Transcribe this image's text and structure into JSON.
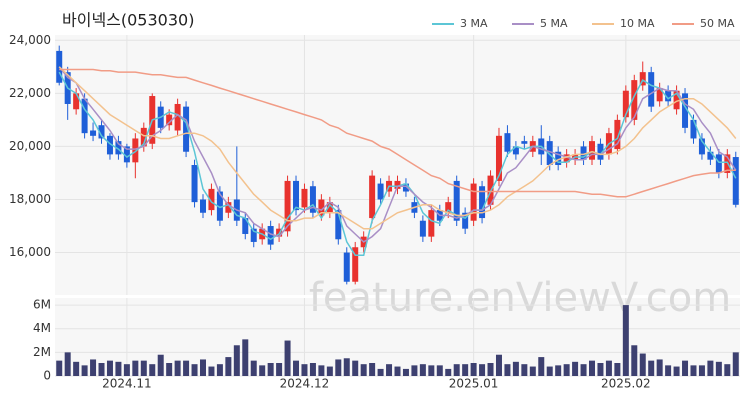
{
  "chart_data": {
    "type": "candlestick",
    "title": "바이넥스(053030)",
    "watermark": "feature.enViewV.com",
    "categories": [
      null,
      null,
      null,
      null,
      null,
      null,
      null,
      null,
      "2024.11",
      null,
      null,
      null,
      null,
      null,
      null,
      null,
      null,
      null,
      null,
      null,
      null,
      null,
      null,
      null,
      null,
      null,
      null,
      null,
      null,
      "2024.12",
      null,
      null,
      null,
      null,
      null,
      null,
      null,
      null,
      null,
      null,
      null,
      null,
      null,
      null,
      null,
      null,
      null,
      null,
      null,
      "2025.01",
      null,
      null,
      null,
      null,
      null,
      null,
      null,
      null,
      null,
      null,
      null,
      null,
      null,
      null,
      null,
      null,
      null,
      "2025.02",
      null,
      null,
      null,
      null,
      null,
      null,
      null,
      null,
      null,
      null,
      null,
      null,
      null
    ],
    "open": [
      23600,
      22800,
      21400,
      21800,
      20600,
      20800,
      20400,
      20200,
      20000,
      19400,
      20000,
      20100,
      21500,
      20800,
      20600,
      21500,
      19300,
      18000,
      17600,
      18300,
      17500,
      18000,
      17300,
      16900,
      16500,
      17000,
      16600,
      16800,
      18700,
      17700,
      18500,
      17400,
      17500,
      17600,
      16000,
      14900,
      16200,
      17300,
      18600,
      18300,
      18400,
      18600,
      17900,
      17200,
      16600,
      17600,
      17500,
      18700,
      17500,
      17200,
      18500,
      17800,
      18700,
      20500,
      20000,
      20200,
      19800,
      20300,
      20200,
      19800,
      19400,
      19500,
      20000,
      19500,
      20100,
      19700,
      19900,
      21100,
      21000,
      22300,
      22800,
      21700,
      22100,
      21400,
      22000,
      21000,
      20300,
      19800,
      19700,
      19000,
      19600
    ],
    "high": [
      23800,
      23000,
      22200,
      22000,
      20900,
      21000,
      20500,
      20400,
      20100,
      20500,
      20900,
      22000,
      21700,
      21400,
      21800,
      21700,
      19500,
      18200,
      18600,
      18500,
      18100,
      20000,
      17500,
      17100,
      17100,
      17200,
      17100,
      18900,
      18900,
      18600,
      18700,
      18200,
      18100,
      17800,
      16200,
      16400,
      16800,
      19100,
      18800,
      18900,
      18900,
      18800,
      18100,
      17400,
      17800,
      17800,
      18100,
      18900,
      17700,
      18800,
      18700,
      19100,
      20700,
      20800,
      20200,
      20400,
      20400,
      20800,
      20400,
      20000,
      19900,
      19900,
      20200,
      20400,
      20300,
      20700,
      21200,
      22300,
      22700,
      23200,
      23000,
      22400,
      22300,
      22300,
      22200,
      21200,
      20500,
      20000,
      19900,
      19900,
      19800
    ],
    "low": [
      22300,
      21000,
      21200,
      20300,
      20200,
      20100,
      19500,
      19500,
      19200,
      18800,
      19800,
      19900,
      20500,
      20600,
      20400,
      19600,
      17700,
      17300,
      17400,
      17000,
      17300,
      17000,
      16500,
      16200,
      16300,
      16100,
      16400,
      16600,
      17400,
      17500,
      17300,
      17200,
      17300,
      16300,
      14800,
      14800,
      16000,
      17100,
      17800,
      18100,
      18200,
      18100,
      17300,
      16400,
      16400,
      17000,
      17300,
      17000,
      16700,
      17000,
      17100,
      17600,
      18500,
      19600,
      19500,
      19900,
      19600,
      19300,
      19100,
      19100,
      19200,
      19300,
      19300,
      19300,
      19300,
      19500,
      19700,
      20900,
      20800,
      22100,
      21300,
      21500,
      21500,
      21200,
      20500,
      20100,
      19500,
      19300,
      18800,
      18800,
      17700
    ],
    "close": [
      22400,
      21600,
      22000,
      20500,
      20400,
      20300,
      19700,
      19700,
      19400,
      20300,
      20700,
      21900,
      20700,
      21200,
      21600,
      19800,
      17900,
      17500,
      18400,
      17200,
      17900,
      17200,
      16700,
      16400,
      16900,
      16300,
      16900,
      18700,
      17600,
      18400,
      17500,
      18000,
      17900,
      16500,
      14900,
      16200,
      16600,
      18900,
      18000,
      18700,
      18700,
      18300,
      17500,
      16600,
      17600,
      17200,
      17900,
      17200,
      16900,
      18600,
      17300,
      18900,
      20400,
      19800,
      19700,
      20100,
      20200,
      19700,
      19300,
      19300,
      19700,
      19700,
      19500,
      20200,
      19500,
      20500,
      21000,
      22100,
      22500,
      22800,
      21500,
      22200,
      21700,
      22100,
      20700,
      20300,
      19700,
      19500,
      19000,
      19700,
      17800
    ],
    "up_color": "#e8322e",
    "down_color": "#1f5fd8",
    "ylim": [
      14400,
      24200
    ],
    "yticks": [
      {
        "value": 16000,
        "label": "16,000"
      },
      {
        "value": 18000,
        "label": "18,000"
      },
      {
        "value": 20000,
        "label": "20,000"
      },
      {
        "value": 22000,
        "label": "22,000"
      },
      {
        "value": 24000,
        "label": "24,000"
      }
    ],
    "grid": true,
    "legend": "top-right",
    "series": [
      {
        "name": "3 MA",
        "color": "#5cc6d6",
        "values": [
          22800,
          22200,
          22000,
          21400,
          21000,
          20400,
          20100,
          19900,
          19600,
          19800,
          20100,
          21000,
          21100,
          21300,
          21200,
          20900,
          19800,
          18400,
          17900,
          17700,
          17800,
          17400,
          17300,
          16800,
          16700,
          16500,
          16700,
          17300,
          17700,
          17600,
          17800,
          17300,
          17800,
          17500,
          16400,
          15900,
          15900,
          17200,
          17800,
          18500,
          18500,
          18600,
          18200,
          17500,
          17200,
          17100,
          17600,
          17400,
          17300,
          17600,
          17600,
          18300,
          18900,
          19700,
          20000,
          19900,
          20000,
          20000,
          19700,
          19400,
          19400,
          19600,
          19600,
          19800,
          19700,
          20100,
          20300,
          21200,
          21900,
          22500,
          22300,
          22200,
          21800,
          22000,
          21500,
          21000,
          20200,
          19800,
          19400,
          19400,
          18800
        ]
      },
      {
        "name": "5 MA",
        "color": "#a98fc6",
        "values": [
          23000,
          22600,
          22400,
          21800,
          21400,
          21000,
          20600,
          20100,
          19900,
          19900,
          20000,
          20400,
          20600,
          20900,
          21200,
          21000,
          20200,
          19600,
          19000,
          18200,
          17800,
          17600,
          17500,
          17100,
          16900,
          16700,
          16600,
          17000,
          17300,
          17600,
          17700,
          17600,
          17900,
          17700,
          17000,
          16700,
          16400,
          16600,
          16900,
          17700,
          18500,
          18500,
          18200,
          17900,
          17700,
          17400,
          17400,
          17300,
          17400,
          17600,
          17600,
          17800,
          18400,
          19000,
          19200,
          19600,
          20000,
          19900,
          19800,
          19700,
          19600,
          19500,
          19500,
          19700,
          19700,
          19900,
          20100,
          20700,
          21100,
          21800,
          22000,
          22200,
          22100,
          22100,
          21600,
          21400,
          20900,
          20500,
          19800,
          19600,
          19100
        ]
      },
      {
        "name": "10 MA",
        "color": "#f3c28e",
        "values": [
          23000,
          22700,
          22400,
          22100,
          21800,
          21500,
          21200,
          21000,
          20800,
          20600,
          20400,
          20400,
          20300,
          20300,
          20400,
          20500,
          20500,
          20400,
          20200,
          19900,
          19400,
          19000,
          18600,
          18200,
          17900,
          17600,
          17400,
          17200,
          17200,
          17300,
          17300,
          17500,
          17500,
          17500,
          17300,
          17100,
          16900,
          16900,
          17100,
          17300,
          17500,
          17600,
          17700,
          17800,
          17800,
          17600,
          17500,
          17400,
          17400,
          17500,
          17500,
          17600,
          17800,
          18100,
          18300,
          18500,
          18700,
          19000,
          19300,
          19500,
          19600,
          19700,
          19700,
          19800,
          19700,
          19700,
          19800,
          20000,
          20300,
          20700,
          21000,
          21300,
          21500,
          21700,
          21800,
          21800,
          21600,
          21300,
          21000,
          20700,
          20300
        ]
      },
      {
        "name": "50 MA",
        "color": "#f19c86",
        "values": [
          22900,
          22900,
          22900,
          22900,
          22900,
          22850,
          22850,
          22800,
          22800,
          22800,
          22750,
          22700,
          22700,
          22650,
          22600,
          22600,
          22500,
          22400,
          22300,
          22200,
          22100,
          22000,
          21900,
          21800,
          21700,
          21600,
          21500,
          21400,
          21300,
          21200,
          21100,
          21000,
          20800,
          20700,
          20500,
          20400,
          20300,
          20200,
          20000,
          19900,
          19700,
          19500,
          19300,
          19100,
          18900,
          18800,
          18600,
          18500,
          18400,
          18300,
          18300,
          18300,
          18300,
          18300,
          18300,
          18300,
          18300,
          18300,
          18300,
          18300,
          18300,
          18300,
          18250,
          18200,
          18200,
          18150,
          18100,
          18100,
          18200,
          18300,
          18400,
          18500,
          18600,
          18700,
          18800,
          18900,
          18950,
          19000,
          19000,
          19100,
          19100
        ]
      }
    ],
    "volume": {
      "color": "#3d4070",
      "ylim": [
        0,
        6600000
      ],
      "yticks": [
        0,
        {
          "value": 2000000,
          "label": "2M"
        },
        {
          "value": 4000000,
          "label": "4M"
        },
        {
          "value": 6000000,
          "label": "6M"
        }
      ],
      "values": [
        1300000,
        2000000,
        1200000,
        900000,
        1400000,
        1100000,
        1300000,
        1200000,
        1000000,
        1300000,
        1300000,
        1000000,
        1800000,
        1100000,
        1300000,
        1300000,
        1000000,
        1400000,
        800000,
        1000000,
        1600000,
        2600000,
        3100000,
        1300000,
        900000,
        1100000,
        1100000,
        3000000,
        1300000,
        1000000,
        1100000,
        900000,
        800000,
        1400000,
        1500000,
        1300000,
        1000000,
        1100000,
        600000,
        1000000,
        800000,
        600000,
        900000,
        1000000,
        900000,
        900000,
        600000,
        1000000,
        1000000,
        1100000,
        1000000,
        1100000,
        1800000,
        1000000,
        1200000,
        1000000,
        800000,
        1600000,
        800000,
        900000,
        1000000,
        1200000,
        1000000,
        1300000,
        1100000,
        1300000,
        1100000,
        6000000,
        2600000,
        1900000,
        1300000,
        1400000,
        900000,
        800000,
        1300000,
        900000,
        900000,
        1300000,
        1200000,
        1000000,
        2000000
      ]
    }
  }
}
